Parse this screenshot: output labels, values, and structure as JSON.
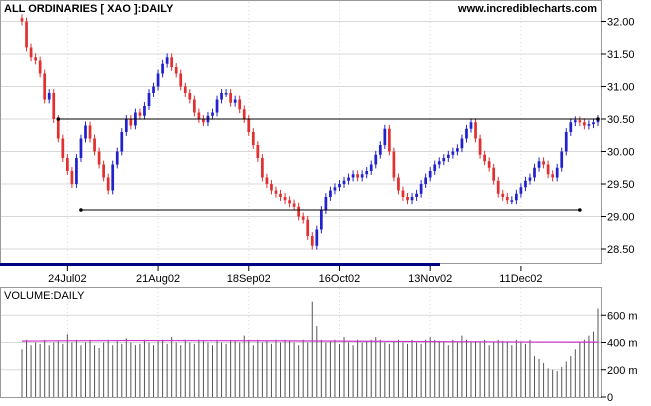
{
  "header": {
    "title": "ALL ORDINARIES [ XAO ]:DAILY",
    "site": "www.incrediblecharts.com"
  },
  "colors": {
    "up_bar": "#2222cc",
    "down_bar": "#e03030",
    "line": "#000000",
    "volume_bar": "#555555",
    "volume_ma": "#cc33cc",
    "grid": "#d8d8d8",
    "frame": "#999999"
  },
  "chart_data": [
    {
      "type": "candlestick",
      "title": "ALL ORDINARIES [ XAO ]:DAILY",
      "y_ticks": [
        "32.00",
        "31.50",
        "31.00",
        "30.50",
        "30.00",
        "29.50",
        "29.00",
        "28.50"
      ],
      "y_tick_values": [
        32.0,
        31.5,
        31.0,
        30.5,
        30.0,
        29.5,
        29.0,
        28.5
      ],
      "ylim": [
        28.3,
        32.3
      ],
      "x_ticks": [
        "24Jul02",
        "21Aug02",
        "18Sep02",
        "16Oct02",
        "13Nov02",
        "11Dec02"
      ],
      "x_tick_index": [
        10,
        30,
        50,
        70,
        90,
        110
      ],
      "bars_count": 128,
      "closes": [
        32.0,
        31.6,
        31.45,
        31.4,
        31.2,
        30.8,
        30.9,
        30.5,
        30.2,
        29.9,
        29.7,
        29.5,
        29.9,
        30.2,
        30.4,
        30.2,
        30.0,
        29.8,
        29.6,
        29.4,
        29.8,
        30.0,
        30.3,
        30.5,
        30.4,
        30.6,
        30.55,
        30.7,
        30.9,
        31.0,
        31.2,
        31.35,
        31.45,
        31.3,
        31.2,
        31.0,
        30.9,
        30.8,
        30.6,
        30.5,
        30.45,
        30.55,
        30.6,
        30.8,
        30.9,
        30.9,
        30.75,
        30.8,
        30.65,
        30.5,
        30.3,
        30.1,
        29.9,
        29.6,
        29.5,
        29.4,
        29.35,
        29.3,
        29.25,
        29.2,
        29.15,
        29.0,
        28.95,
        28.7,
        28.55,
        28.8,
        29.1,
        29.3,
        29.4,
        29.45,
        29.5,
        29.55,
        29.6,
        29.65,
        29.6,
        29.65,
        29.7,
        29.8,
        29.95,
        30.1,
        30.35,
        30.0,
        29.6,
        29.4,
        29.3,
        29.25,
        29.3,
        29.35,
        29.5,
        29.6,
        29.7,
        29.8,
        29.85,
        29.9,
        29.95,
        30.0,
        30.05,
        30.2,
        30.35,
        30.45,
        30.2,
        29.95,
        29.85,
        29.75,
        29.55,
        29.35,
        29.3,
        29.25,
        29.25,
        29.35,
        29.45,
        29.55,
        29.6,
        29.75,
        29.85,
        29.8,
        29.65,
        29.6,
        29.75,
        30.0,
        30.3,
        30.45,
        30.48,
        30.45,
        30.4,
        30.42,
        30.45,
        30.5
      ],
      "upper_line": {
        "value": 30.5,
        "from_index": 8,
        "to_index": 127
      },
      "lower_line": {
        "value": 29.1,
        "from_index": 13,
        "to_index": 123
      }
    },
    {
      "type": "bar",
      "title": "VOLUME:DAILY",
      "y_ticks": [
        "600 m",
        "400 m",
        "200 m",
        "0"
      ],
      "y_tick_values": [
        600,
        400,
        200,
        0
      ],
      "ylim": [
        0,
        800
      ],
      "volumes": [
        350,
        420,
        380,
        400,
        390,
        420,
        380,
        400,
        410,
        390,
        460,
        400,
        420,
        380,
        400,
        420,
        380,
        360,
        400,
        420,
        380,
        410,
        390,
        430,
        400,
        380,
        390,
        420,
        400,
        380,
        410,
        420,
        390,
        440,
        400,
        380,
        420,
        400,
        390,
        420,
        410,
        400,
        380,
        420,
        400,
        390,
        420,
        410,
        400,
        450,
        420,
        380,
        420,
        400,
        410,
        390,
        420,
        400,
        420,
        410,
        400,
        380,
        420,
        400,
        700,
        520,
        420,
        400,
        410,
        420,
        390,
        440,
        400,
        380,
        420,
        400,
        410,
        420,
        440,
        420,
        400,
        390,
        410,
        420,
        400,
        390,
        420,
        400,
        390,
        420,
        440,
        420,
        410,
        400,
        380,
        420,
        400,
        450,
        420,
        400,
        410,
        400,
        420,
        380,
        400,
        420,
        410,
        400,
        380,
        420,
        400,
        390,
        420,
        300,
        280,
        250,
        210,
        200,
        190,
        220,
        260,
        300,
        350,
        400,
        420,
        450,
        480,
        650
      ],
      "ma_value": 410
    }
  ]
}
